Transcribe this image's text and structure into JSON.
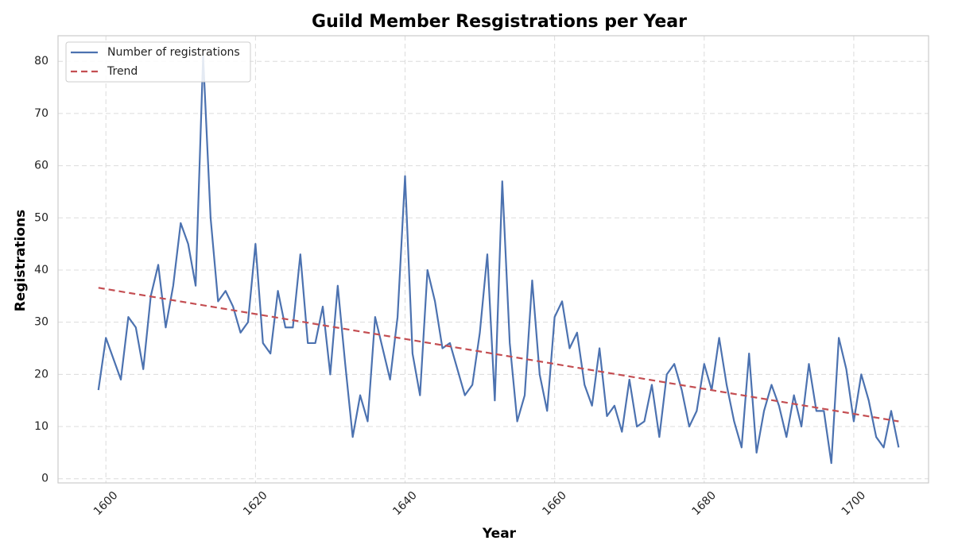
{
  "chart_data": {
    "type": "line",
    "title": "Guild Member Resgistrations per Year",
    "xlabel": "Year",
    "ylabel": "Registrations",
    "x": [
      1599,
      1600,
      1601,
      1602,
      1603,
      1604,
      1605,
      1606,
      1607,
      1608,
      1609,
      1610,
      1611,
      1612,
      1613,
      1614,
      1615,
      1616,
      1617,
      1618,
      1619,
      1620,
      1621,
      1622,
      1623,
      1624,
      1625,
      1626,
      1627,
      1628,
      1629,
      1630,
      1631,
      1632,
      1633,
      1634,
      1635,
      1636,
      1637,
      1638,
      1639,
      1640,
      1641,
      1642,
      1643,
      1644,
      1645,
      1646,
      1647,
      1648,
      1649,
      1650,
      1651,
      1652,
      1653,
      1654,
      1655,
      1656,
      1657,
      1658,
      1659,
      1660,
      1661,
      1662,
      1663,
      1664,
      1665,
      1666,
      1667,
      1668,
      1669,
      1670,
      1671,
      1672,
      1673,
      1674,
      1675,
      1676,
      1677,
      1678,
      1679,
      1680,
      1681,
      1682,
      1683,
      1684,
      1685,
      1686,
      1687,
      1688,
      1689,
      1690,
      1691,
      1692,
      1693,
      1694,
      1695,
      1696,
      1697,
      1698,
      1699,
      1700,
      1701,
      1702,
      1703,
      1704,
      1705,
      1706
    ],
    "series": [
      {
        "name": "Number of registrations",
        "color": "#4c72b0",
        "style": "solid",
        "values": [
          17,
          27,
          23,
          19,
          31,
          29,
          21,
          35,
          41,
          29,
          37,
          49,
          45,
          37,
          81,
          50,
          34,
          36,
          33,
          28,
          30,
          45,
          26,
          24,
          36,
          29,
          29,
          43,
          26,
          26,
          33,
          20,
          37,
          22,
          8,
          16,
          11,
          31,
          25,
          19,
          31,
          58,
          24,
          16,
          40,
          34,
          25,
          26,
          21,
          16,
          18,
          28,
          43,
          15,
          57,
          26,
          11,
          16,
          38,
          20,
          13,
          31,
          34,
          25,
          28,
          18,
          14,
          25,
          12,
          14,
          9,
          19,
          10,
          11,
          18,
          8,
          20,
          22,
          17,
          10,
          13,
          22,
          17,
          27,
          18,
          11,
          6,
          24,
          5,
          13,
          18,
          14,
          8,
          16,
          10,
          22,
          13,
          13,
          3,
          27,
          21,
          11,
          20,
          15,
          8,
          6,
          13,
          6
        ]
      },
      {
        "name": "Trend",
        "color": "#c44e52",
        "style": "dashed",
        "x": [
          1599,
          1706
        ],
        "values": [
          36.6,
          11.0
        ]
      }
    ],
    "xlim": [
      1593.6,
      1710
    ],
    "ylim": [
      -0.8,
      84.9
    ],
    "xticks": [
      1600,
      1620,
      1640,
      1660,
      1680,
      1700
    ],
    "yticks": [
      0,
      10,
      20,
      30,
      40,
      50,
      60,
      70,
      80
    ],
    "grid": true,
    "legend": "upper left"
  }
}
